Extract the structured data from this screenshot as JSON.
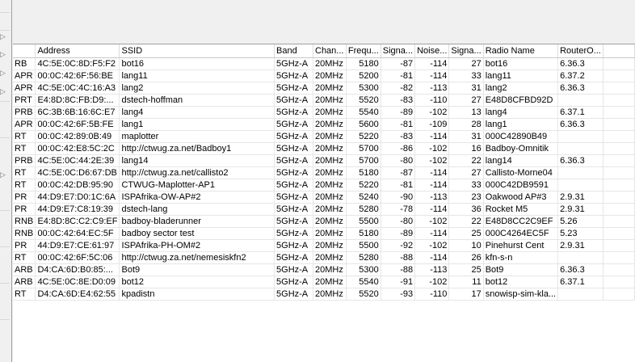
{
  "columns": [
    "",
    "Address",
    "SSID",
    "Band",
    "Chan...",
    "Frequ...",
    "Signa...",
    "Noise...",
    "Signa...",
    "Radio Name",
    "RouterO..."
  ],
  "rows": [
    [
      "RB",
      "4C:5E:0C:8D:F5:F2",
      "bot16",
      "5GHz-A",
      "20MHz",
      "5180",
      "-87",
      "-114",
      "27",
      "bot16",
      "6.36.3"
    ],
    [
      "APR",
      "00:0C:42:6F:56:BE",
      "lang11",
      "5GHz-A",
      "20MHz",
      "5200",
      "-81",
      "-114",
      "33",
      "lang11",
      "6.37.2"
    ],
    [
      "APR",
      "4C:5E:0C:4C:16:A3",
      "lang2",
      "5GHz-A",
      "20MHz",
      "5300",
      "-82",
      "-113",
      "31",
      "lang2",
      "6.36.3"
    ],
    [
      "PRT",
      "E4:8D:8C:FB:D9:...",
      "dstech-hoffman",
      "5GHz-A",
      "20MHz",
      "5520",
      "-83",
      "-110",
      "27",
      "E48D8CFBD92D",
      ""
    ],
    [
      "PRB",
      "6C:3B:6B:16:6C:E7",
      "lang4",
      "5GHz-A",
      "20MHz",
      "5540",
      "-89",
      "-102",
      "13",
      "lang4",
      "6.37.1"
    ],
    [
      "APR",
      "00:0C:42:6F:5B:FE",
      "lang1",
      "5GHz-A",
      "20MHz",
      "5600",
      "-81",
      "-109",
      "28",
      "lang1",
      "6.36.3"
    ],
    [
      "RT",
      "00:0C:42:89:0B:49",
      "maplotter",
      "5GHz-A",
      "20MHz",
      "5220",
      "-83",
      "-114",
      "31",
      "000C42890B49",
      ""
    ],
    [
      "RT",
      "00:0C:42:E8:5C:2C",
      "http://ctwug.za.net/Badboy1",
      "5GHz-A",
      "20MHz",
      "5700",
      "-86",
      "-102",
      "16",
      "Badboy-Omnitik",
      ""
    ],
    [
      "PRB",
      "4C:5E:0C:44:2E:39",
      "lang14",
      "5GHz-A",
      "20MHz",
      "5700",
      "-80",
      "-102",
      "22",
      "lang14",
      "6.36.3"
    ],
    [
      "RT",
      "4C:5E:0C:D6:67:DB",
      "http://ctwug.za.net/callisto2",
      "5GHz-A",
      "20MHz",
      "5180",
      "-87",
      "-114",
      "27",
      "Callisto-Morne04",
      ""
    ],
    [
      "RT",
      "00:0C:42:DB:95:90",
      "CTWUG-Maplotter-AP1",
      "5GHz-A",
      "20MHz",
      "5220",
      "-81",
      "-114",
      "33",
      "000C42DB9591",
      ""
    ],
    [
      "PR",
      "44:D9:E7:D0:1C:6A",
      "ISPAfrika-OW-AP#2",
      "5GHz-A",
      "20MHz",
      "5240",
      "-90",
      "-113",
      "23",
      "Oakwood AP#3",
      "2.9.31"
    ],
    [
      "PR",
      "44:D9:E7:C8:19:39",
      "dstech-lang",
      "5GHz-A",
      "20MHz",
      "5280",
      "-78",
      "-114",
      "36",
      "Rocket M5",
      "2.9.31"
    ],
    [
      "RNB",
      "E4:8D:8C:C2:C9:EF",
      "badboy-bladerunner",
      "5GHz-A",
      "20MHz",
      "5500",
      "-80",
      "-102",
      "22",
      "E48D8CC2C9EF",
      "5.26"
    ],
    [
      "RNB",
      "00:0C:42:64:EC:5F",
      "badboy sector test",
      "5GHz-A",
      "20MHz",
      "5180",
      "-89",
      "-114",
      "25",
      "000C4264EC5F",
      "5.23"
    ],
    [
      "PR",
      "44:D9:E7:CE:61:97",
      "ISPAfrika-PH-OM#2",
      "5GHz-A",
      "20MHz",
      "5500",
      "-92",
      "-102",
      "10",
      "Pinehurst Cent",
      "2.9.31"
    ],
    [
      "RT",
      "00:0C:42:6F:5C:06",
      "http://ctwug.za.net/nemesiskfn2",
      "5GHz-A",
      "20MHz",
      "5280",
      "-88",
      "-114",
      "26",
      "kfn-s-n",
      ""
    ],
    [
      "ARB",
      "D4:CA:6D:B0:85:...",
      "Bot9",
      "5GHz-A",
      "20MHz",
      "5300",
      "-88",
      "-113",
      "25",
      "Bot9",
      "6.36.3"
    ],
    [
      "ARB",
      "4C:5E:0C:8E:D0:09",
      "bot12",
      "5GHz-A",
      "20MHz",
      "5540",
      "-91",
      "-102",
      "11",
      "bot12",
      "6.37.1"
    ],
    [
      "RT",
      "D4:CA:6D:E4:62:55",
      "kpadistn",
      "5GHz-A",
      "20MHz",
      "5520",
      "-93",
      "-110",
      "17",
      "snowisp-sim-kla...",
      ""
    ]
  ]
}
